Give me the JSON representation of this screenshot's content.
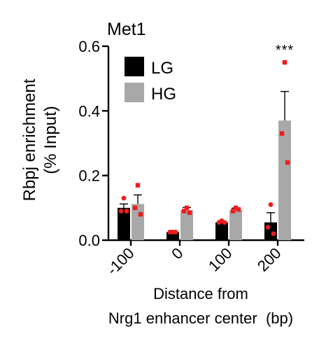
{
  "chart_data": {
    "type": "bar",
    "title": "Met1",
    "ylabel_lines": [
      "Rbpj enrichment",
      "(% Input)"
    ],
    "xlabel_lines": [
      "Distance from",
      "Nrg1 enhancer center  (bp)"
    ],
    "categories": [
      "-100",
      "0",
      "100",
      "200"
    ],
    "ylim": [
      0,
      0.6
    ],
    "yticks": [
      "0.0",
      "0.2",
      "0.4",
      "0.6"
    ],
    "ytick_values": [
      0,
      0.2,
      0.4,
      0.6
    ],
    "grid": false,
    "legend_position": "top-left",
    "series": [
      {
        "name": "LG",
        "color": "#000000",
        "values": [
          0.1,
          0.025,
          0.055,
          0.055
        ],
        "errors": [
          0.012,
          0.003,
          0.004,
          0.03
        ],
        "points": [
          [
            0.13,
            0.09,
            0.09
          ],
          [
            0.025,
            0.025,
            0.025
          ],
          [
            0.06,
            0.055,
            0.055
          ],
          [
            0.11,
            0.04,
            0.02
          ]
        ]
      },
      {
        "name": "HG",
        "color": "#a8a8a8",
        "values": [
          0.112,
          0.093,
          0.093,
          0.37
        ],
        "errors": [
          0.028,
          0.008,
          0.006,
          0.09
        ],
        "points": [
          [
            0.17,
            0.1,
            0.08
          ],
          [
            0.1,
            0.09,
            0.085
          ],
          [
            0.1,
            0.09,
            0.095
          ],
          [
            0.55,
            0.33,
            0.24
          ]
        ]
      }
    ],
    "point_color": "#ee1c1c",
    "annotations": [
      {
        "category": "200",
        "series": "HG",
        "text": "***"
      }
    ]
  }
}
